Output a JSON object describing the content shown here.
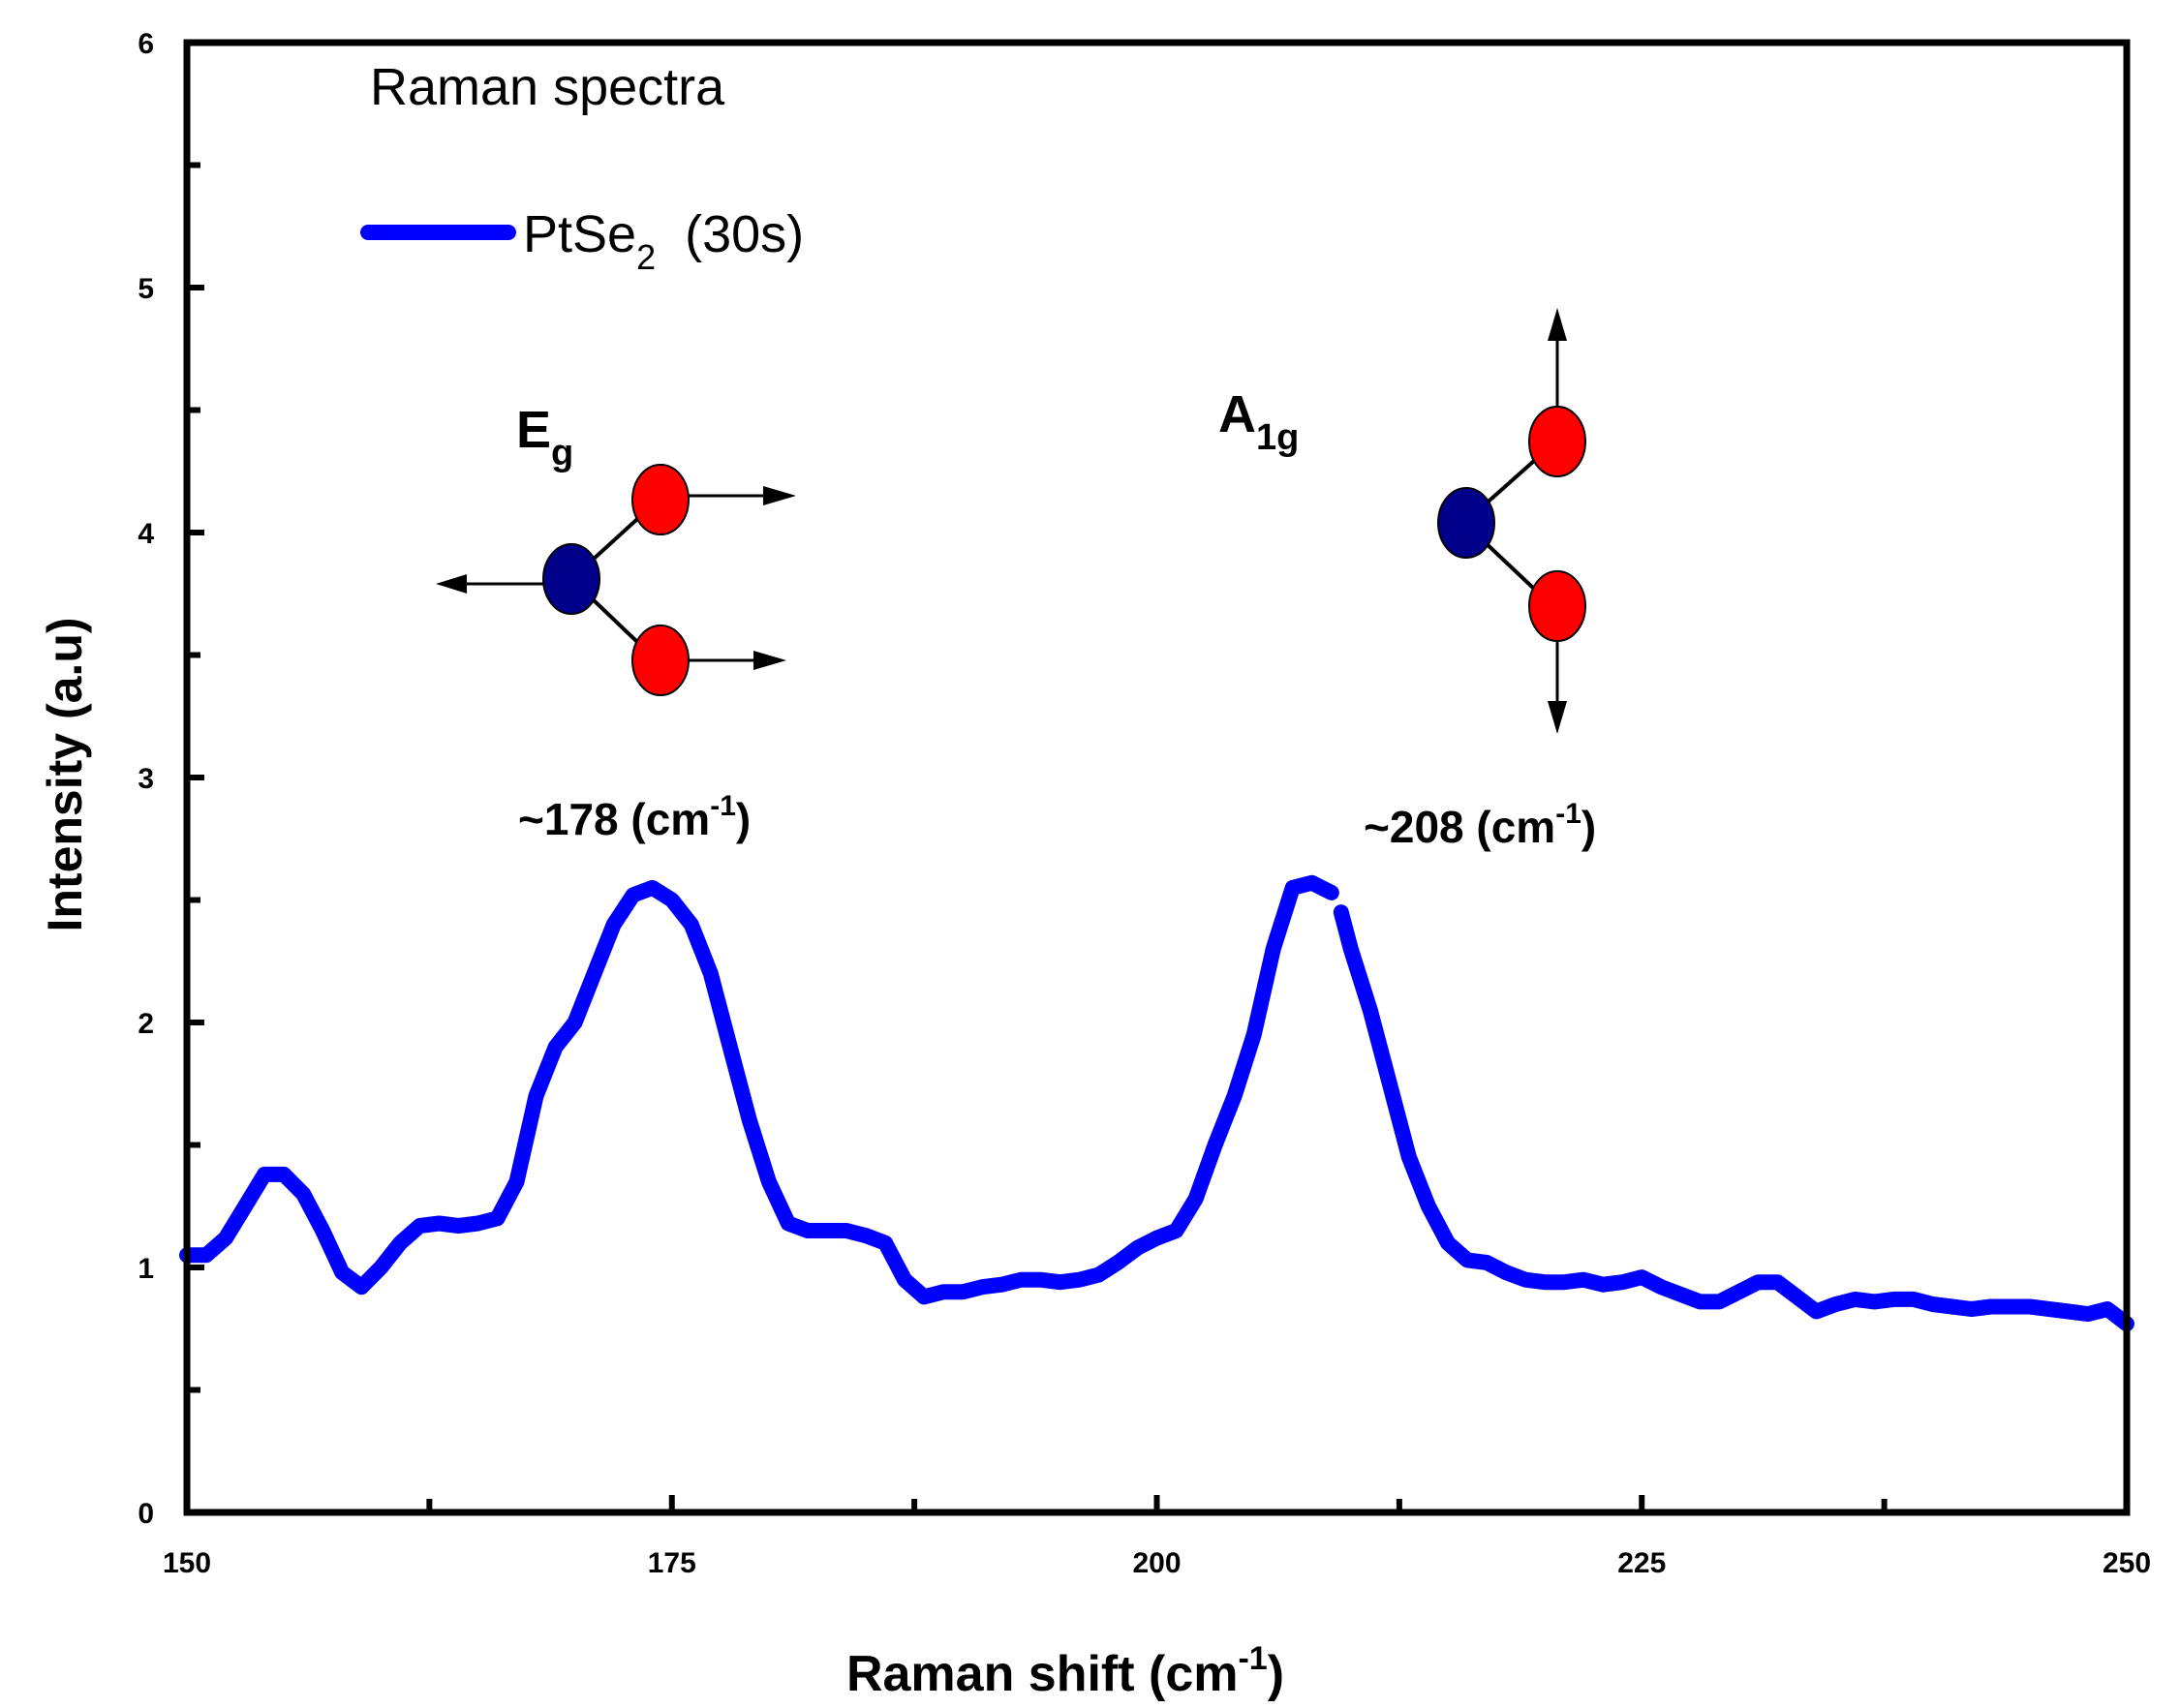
{
  "chart_data": {
    "type": "line",
    "title": "Raman spectra",
    "xlabel_main": "Raman shift (cm",
    "xlabel_sup": "-1",
    "xlabel_close": ")",
    "ylabel": "Intensity (a.u)",
    "xlim": [
      150,
      250
    ],
    "ylim": [
      0,
      6
    ],
    "xticks": [
      "150",
      "175",
      "200",
      "225",
      "250"
    ],
    "yticks": [
      "0",
      "1",
      "2",
      "3",
      "4",
      "5",
      "6"
    ],
    "series": [
      {
        "name_main": "PtSe",
        "name_sub": "2",
        "name_tail": "(30s)",
        "color": "#0000ff",
        "segments": [
          {
            "x": [
              150,
              151,
              152,
              153,
              154,
              155,
              156,
              157,
              158,
              159,
              160,
              161,
              162,
              163,
              164,
              165,
              166,
              167,
              168,
              169,
              170,
              171,
              172,
              173,
              174,
              175,
              176,
              177,
              178,
              179,
              180,
              181,
              182,
              183,
              184,
              185,
              186,
              187,
              188,
              189,
              190,
              191,
              192,
              193,
              194,
              195,
              196,
              197,
              198,
              199,
              200,
              201,
              202,
              203,
              204,
              205,
              206,
              207,
              208,
              208.5,
              209
            ],
            "y": [
              1.05,
              1.05,
              1.12,
              1.25,
              1.38,
              1.38,
              1.3,
              1.15,
              0.98,
              0.92,
              1.0,
              1.1,
              1.17,
              1.18,
              1.17,
              1.18,
              1.2,
              1.35,
              1.7,
              1.9,
              2.0,
              2.2,
              2.4,
              2.52,
              2.55,
              2.5,
              2.4,
              2.2,
              1.9,
              1.6,
              1.35,
              1.18,
              1.15,
              1.15,
              1.15,
              1.13,
              1.1,
              0.95,
              0.88,
              0.9,
              0.9,
              0.92,
              0.93,
              0.95,
              0.95,
              0.94,
              0.95,
              0.97,
              1.02,
              1.08,
              1.12,
              1.15,
              1.28,
              1.5,
              1.7,
              1.95,
              2.3,
              2.55,
              2.57,
              2.55,
              2.53
            ]
          },
          {
            "x": [
              209.5,
              210,
              211,
              212,
              213,
              214,
              215,
              216,
              217,
              218,
              219,
              220,
              221,
              222,
              223,
              224,
              225,
              226,
              227,
              228,
              229,
              230,
              231,
              232,
              233,
              234,
              235,
              236,
              237,
              238,
              239,
              240,
              241,
              242,
              243,
              244,
              245,
              246,
              247,
              248,
              249,
              250
            ],
            "y": [
              2.45,
              2.3,
              2.05,
              1.75,
              1.45,
              1.25,
              1.1,
              1.03,
              1.02,
              0.98,
              0.95,
              0.94,
              0.94,
              0.95,
              0.93,
              0.94,
              0.96,
              0.92,
              0.89,
              0.86,
              0.86,
              0.9,
              0.94,
              0.94,
              0.88,
              0.82,
              0.85,
              0.87,
              0.86,
              0.87,
              0.87,
              0.85,
              0.84,
              0.83,
              0.84,
              0.84,
              0.84,
              0.83,
              0.82,
              0.81,
              0.83,
              0.77
            ]
          }
        ]
      }
    ],
    "annotations": {
      "eg_main": "E",
      "eg_sub": "g",
      "a1g_main": "A",
      "a1g_sub": "1g",
      "peak1_main": "~178 (cm",
      "peak1_sup": "-1",
      "peak1_close": ")",
      "peak2_main": "~208 (cm",
      "peak2_sup": "-1",
      "peak2_close": ")"
    },
    "molecule_colors": {
      "metal": "#00008b",
      "chalcogen": "#ff0000"
    }
  }
}
